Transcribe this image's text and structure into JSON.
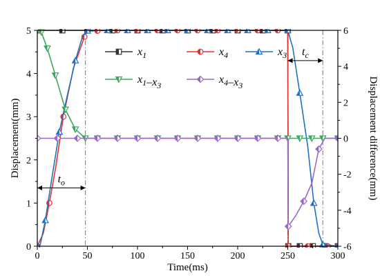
{
  "chart_data": {
    "type": "line",
    "xlabel": "Time(ms)",
    "ylabel_left": "Displacement(mm)",
    "ylabel_right": "Displacement difference(mm)",
    "xlim": [
      0,
      300
    ],
    "ylim_left": [
      0,
      5
    ],
    "ylim_right": [
      -6,
      6
    ],
    "x_ticks": [
      0,
      50,
      100,
      150,
      200,
      250,
      300
    ],
    "y_left_ticks": [
      0,
      1,
      2,
      3,
      4,
      5
    ],
    "y_right_ticks": [
      -6,
      -4,
      -2,
      0,
      2,
      4,
      6
    ],
    "legend_position": "upper-center",
    "annotations": [
      {
        "label": "t_o",
        "base": "t",
        "sub": "o",
        "from_x": 0,
        "to_x": 48,
        "y": 1.35
      },
      {
        "label": "t_c",
        "base": "t",
        "sub": "c",
        "from_x": 250,
        "to_x": 285,
        "y": 4.3
      }
    ],
    "vlines_x": [
      48,
      250,
      285
    ],
    "hlines_y": [
      5
    ],
    "series": [
      {
        "name": "x_1",
        "axis": "left",
        "color": "#333333",
        "marker": "square",
        "x": [
          0,
          25,
          50,
          75,
          100,
          125,
          150,
          175,
          200,
          225,
          250,
          250.5,
          262,
          275,
          287,
          300
        ],
        "y": [
          5,
          5,
          5,
          5,
          5,
          5,
          5,
          5,
          5,
          5,
          5,
          0,
          0,
          0,
          0,
          0
        ]
      },
      {
        "name": "x_4",
        "axis": "left",
        "color": "#e8302c",
        "marker": "circle",
        "x": [
          0,
          6,
          12,
          18,
          26,
          36,
          47,
          50,
          60,
          70,
          80,
          90,
          100,
          110,
          120,
          130,
          140,
          150,
          160,
          170,
          180,
          190,
          200,
          210,
          220,
          230,
          240,
          250,
          250.5,
          260,
          270,
          280,
          290,
          300
        ],
        "y": [
          0,
          0.3,
          1.0,
          1.78,
          3.0,
          4.12,
          4.85,
          4.98,
          4.99,
          5,
          5,
          5,
          5,
          5,
          5,
          5,
          5,
          5,
          5,
          5,
          5,
          5,
          5,
          5,
          5,
          5,
          5,
          5,
          0,
          0,
          0,
          0,
          0,
          0
        ]
      },
      {
        "name": "x_3",
        "axis": "left",
        "color": "#1f6fc7",
        "marker": "triangle-up",
        "x": [
          0,
          3,
          8,
          14,
          22,
          30,
          38,
          45,
          50,
          60,
          70,
          80,
          90,
          100,
          110,
          120,
          130,
          140,
          150,
          160,
          170,
          180,
          190,
          200,
          210,
          220,
          230,
          240,
          250,
          255,
          262,
          270,
          276,
          281,
          285,
          300
        ],
        "y": [
          0,
          0.04,
          0.6,
          1.5,
          2.65,
          3.5,
          4.3,
          4.85,
          4.99,
          5,
          5,
          5,
          5,
          5,
          5,
          5,
          5,
          5,
          5,
          5,
          5,
          5,
          5,
          5,
          5,
          5,
          5,
          5,
          5,
          4.6,
          3.55,
          2.3,
          1.0,
          0.3,
          0.04,
          0
        ]
      },
      {
        "name": "x_1-x_3",
        "axis": "right",
        "color": "#3aa85a",
        "marker": "triangle-down",
        "x": [
          0,
          4,
          10,
          18,
          28,
          38,
          48,
          60,
          80,
          100,
          120,
          140,
          160,
          180,
          200,
          220,
          240,
          250,
          262,
          274,
          285,
          300
        ],
        "y": [
          6,
          5.9,
          5.0,
          3.5,
          1.6,
          0.5,
          0,
          0,
          0,
          0,
          0,
          0,
          0,
          0,
          0,
          0,
          0,
          0,
          0,
          0,
          0,
          0
        ]
      },
      {
        "name": "x_4-x_3",
        "axis": "right",
        "color": "#9966cc",
        "marker": "diamond",
        "x": [
          0,
          10,
          20,
          30,
          40,
          50,
          60,
          70,
          80,
          90,
          100,
          110,
          120,
          130,
          140,
          150,
          160,
          170,
          180,
          190,
          200,
          210,
          220,
          230,
          240,
          250,
          250.5,
          258,
          266,
          274,
          281,
          287,
          300
        ],
        "y": [
          0,
          0,
          0,
          0,
          0,
          0,
          0,
          0,
          0,
          0,
          0,
          0,
          0,
          0,
          0,
          0,
          0,
          0,
          0,
          0,
          0,
          0,
          0,
          0,
          0,
          0,
          -4.9,
          -4.3,
          -3.5,
          -2.5,
          -0.6,
          0,
          0
        ]
      }
    ]
  }
}
